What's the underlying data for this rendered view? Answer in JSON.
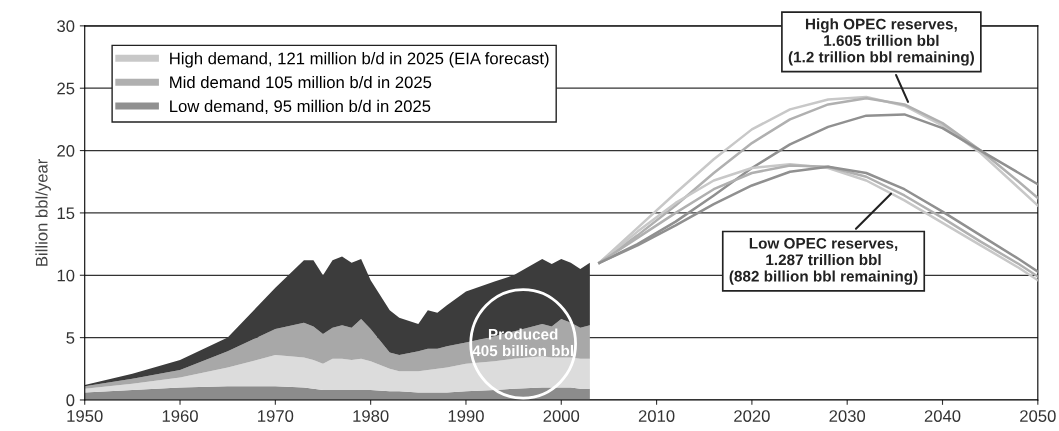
{
  "chart_data": {
    "type": "line",
    "ylabel": "Billion bbl/year",
    "xlim": [
      1950,
      2050
    ],
    "ylim": [
      0,
      30
    ],
    "xticks": [
      1950,
      1960,
      1970,
      1980,
      1990,
      2000,
      2010,
      2020,
      2030,
      2040,
      2050
    ],
    "yticks": [
      0,
      5,
      10,
      15,
      20,
      25,
      30
    ],
    "grid": "y",
    "legend": "top left",
    "stacked": true,
    "line_style": "solid",
    "marker": "none",
    "series": [
      {
        "type": "area",
        "color": "#8c8c8c",
        "x": [
          1950,
          1955,
          1960,
          1965,
          1970,
          1973,
          1974,
          1975,
          1976,
          1977,
          1978,
          1979,
          1980,
          1982,
          1983,
          1985,
          1986,
          1987,
          1988,
          1990,
          1993,
          1995,
          1998,
          1999,
          2000,
          2001,
          2002,
          2003
        ],
        "values": [
          0.6,
          0.8,
          1.0,
          1.1,
          1.1,
          1.0,
          0.9,
          0.8,
          0.8,
          0.8,
          0.8,
          0.8,
          0.8,
          0.7,
          0.7,
          0.6,
          0.6,
          0.6,
          0.6,
          0.7,
          0.8,
          0.9,
          1.0,
          1.0,
          1.0,
          1.0,
          0.9,
          0.9
        ]
      },
      {
        "type": "area",
        "color": "#dcdcdc",
        "x": [
          1950,
          1955,
          1960,
          1965,
          1970,
          1973,
          1974,
          1975,
          1976,
          1977,
          1978,
          1979,
          1980,
          1982,
          1983,
          1985,
          1986,
          1987,
          1988,
          1990,
          1993,
          1995,
          1998,
          1999,
          2000,
          2001,
          2002,
          2003
        ],
        "values": [
          0.3,
          0.5,
          0.8,
          1.5,
          2.5,
          2.4,
          2.3,
          2.1,
          2.5,
          2.5,
          2.4,
          2.5,
          2.3,
          1.8,
          1.6,
          1.7,
          1.8,
          1.9,
          2.0,
          2.2,
          2.3,
          2.4,
          2.5,
          2.4,
          2.4,
          2.4,
          2.4,
          2.4
        ]
      },
      {
        "type": "area",
        "color": "#a8a8a8",
        "x": [
          1950,
          1955,
          1960,
          1965,
          1970,
          1973,
          1974,
          1975,
          1976,
          1977,
          1978,
          1979,
          1980,
          1982,
          1983,
          1985,
          1986,
          1987,
          1988,
          1990,
          1993,
          1995,
          1998,
          1999,
          2000,
          2001,
          2002,
          2003
        ],
        "values": [
          0.2,
          0.4,
          0.6,
          1.3,
          2.1,
          2.8,
          2.7,
          2.4,
          2.5,
          2.7,
          2.6,
          3.2,
          2.6,
          1.3,
          1.3,
          1.6,
          1.7,
          1.6,
          1.7,
          1.7,
          2.0,
          2.2,
          2.6,
          2.5,
          3.1,
          2.8,
          2.5,
          2.7
        ]
      },
      {
        "type": "area",
        "color": "#3c3c3c",
        "x": [
          1950,
          1955,
          1960,
          1965,
          1970,
          1973,
          1974,
          1975,
          1976,
          1977,
          1978,
          1979,
          1980,
          1982,
          1983,
          1985,
          1986,
          1987,
          1988,
          1990,
          1993,
          1995,
          1998,
          1999,
          2000,
          2001,
          2002,
          2003
        ],
        "values": [
          0.1,
          0.4,
          0.8,
          1.1,
          3.3,
          5.0,
          5.3,
          4.7,
          5.4,
          5.5,
          5.2,
          4.8,
          3.9,
          3.4,
          3.0,
          2.2,
          3.1,
          2.9,
          3.3,
          4.1,
          4.4,
          4.5,
          5.2,
          5.0,
          4.8,
          4.8,
          4.7,
          5.0
        ]
      },
      {
        "name": "High demand, 121 million b/d in 2025 (EIA forecast)",
        "color": "#c8c8c8",
        "x": [
          2004,
          2008,
          2012,
          2016,
          2020,
          2024,
          2028,
          2032,
          2036,
          2040,
          2044,
          2048,
          2050
        ],
        "values": [
          11.0,
          13.8,
          16.6,
          19.3,
          21.7,
          23.3,
          24.1,
          24.3,
          23.6,
          22.0,
          19.8,
          17.0,
          15.6
        ]
      },
      {
        "name": "Mid demand 105 million b/d in 2025",
        "color": "#b0b0b0",
        "x": [
          2004,
          2008,
          2012,
          2016,
          2020,
          2024,
          2028,
          2032,
          2036,
          2040,
          2044,
          2048,
          2050
        ],
        "values": [
          11.0,
          13.2,
          15.6,
          18.2,
          20.6,
          22.5,
          23.7,
          24.2,
          23.7,
          22.2,
          20.0,
          17.5,
          16.2
        ]
      },
      {
        "name": "Low demand, 95 million b/d in 2025",
        "color": "#909090",
        "x": [
          2004,
          2008,
          2012,
          2016,
          2020,
          2024,
          2028,
          2032,
          2036,
          2040,
          2044,
          2048,
          2050
        ],
        "values": [
          11.0,
          12.5,
          14.3,
          16.4,
          18.6,
          20.5,
          21.9,
          22.8,
          22.9,
          21.8,
          20.0,
          18.2,
          17.3
        ]
      },
      {
        "color": "#c8c8c8",
        "x": [
          2004,
          2008,
          2012,
          2016,
          2020,
          2024,
          2028,
          2032,
          2036,
          2040,
          2044,
          2048,
          2050
        ],
        "values": [
          11.0,
          13.5,
          15.8,
          17.6,
          18.6,
          18.9,
          18.6,
          17.6,
          16.0,
          14.2,
          12.4,
          10.6,
          9.6
        ]
      },
      {
        "color": "#b0b0b0",
        "x": [
          2004,
          2008,
          2012,
          2016,
          2020,
          2024,
          2028,
          2032,
          2036,
          2040,
          2044,
          2048,
          2050
        ],
        "values": [
          11.0,
          13.0,
          15.0,
          16.9,
          18.2,
          18.8,
          18.7,
          17.9,
          16.4,
          14.6,
          12.7,
          10.9,
          9.9
        ]
      },
      {
        "color": "#909090",
        "x": [
          2004,
          2008,
          2012,
          2016,
          2020,
          2024,
          2028,
          2032,
          2036,
          2040,
          2044,
          2048,
          2050
        ],
        "values": [
          11.0,
          12.4,
          14.0,
          15.7,
          17.2,
          18.3,
          18.7,
          18.2,
          16.9,
          15.1,
          13.2,
          11.3,
          10.3
        ]
      }
    ],
    "annotations": [
      {
        "text": "High OPEC reserves,\n1.605 trillion bbl\n(1.2 trillion bbl remaining)",
        "x": 2036.5,
        "y": 23.7
      },
      {
        "text": "Low OPEC reserves,\n1.287 trillion bbl\n(882 billion bbl remaining)",
        "x": 2034.8,
        "y": 16.7
      },
      "Produced\n405 billion bbl"
    ]
  }
}
